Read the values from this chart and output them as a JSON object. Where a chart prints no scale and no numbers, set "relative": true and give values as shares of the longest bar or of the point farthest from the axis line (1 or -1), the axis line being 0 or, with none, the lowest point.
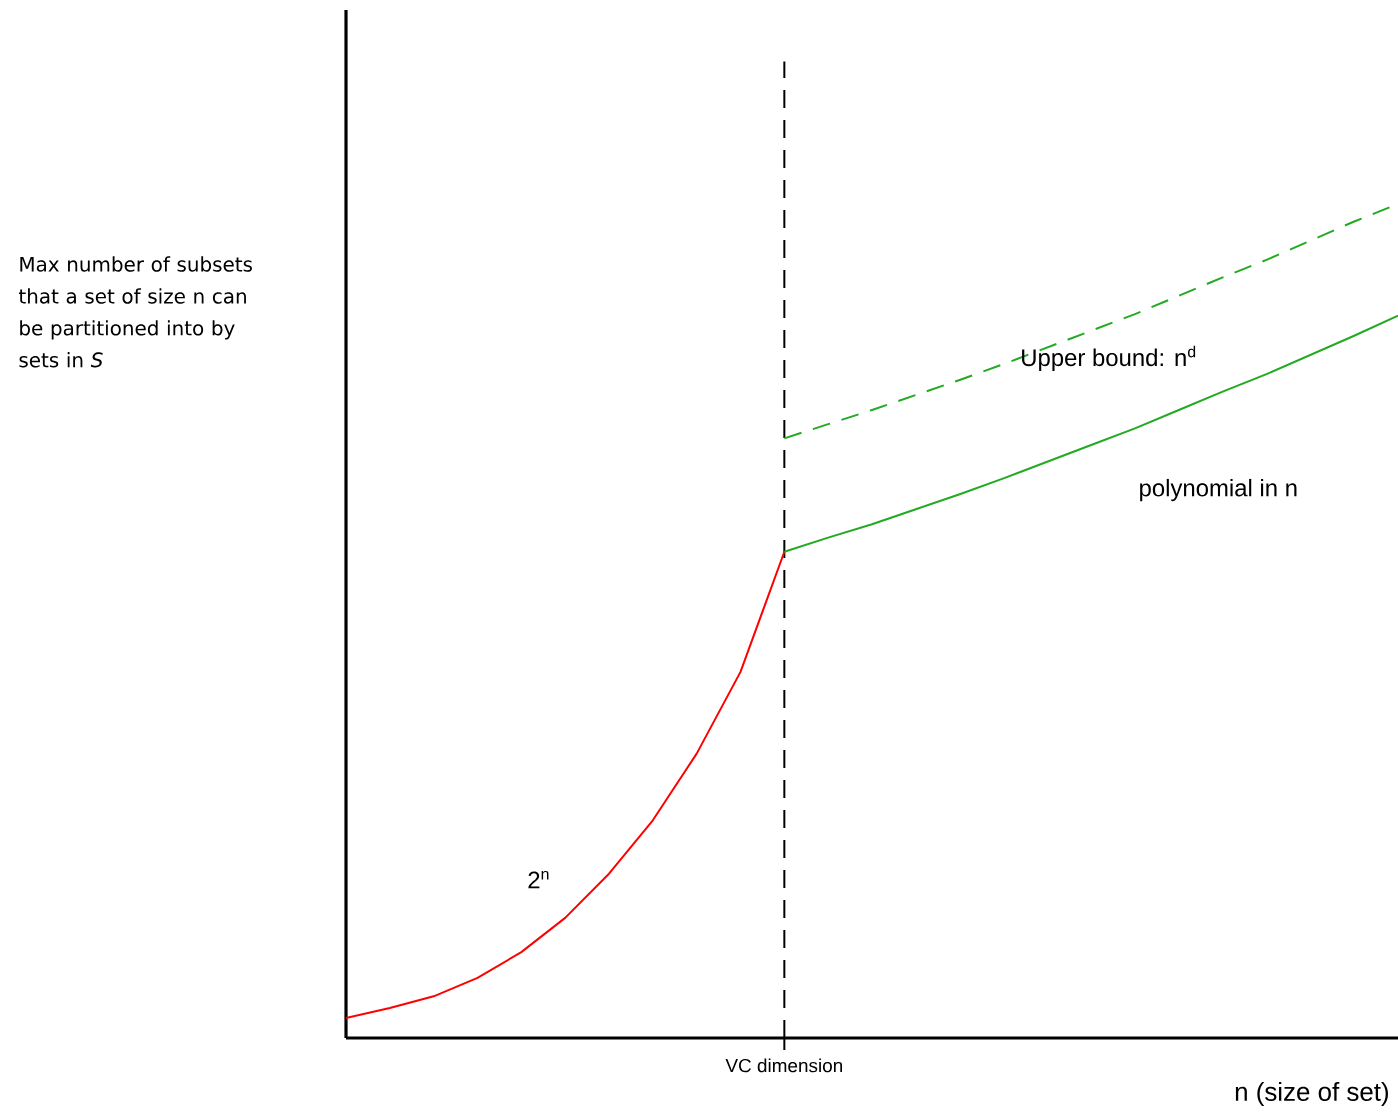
{
  "chart_data": {
    "type": "line",
    "relative": true,
    "ylabel": "Max number of subsets that a set of size n can be partitioned into by sets in *S*",
    "xlabel": "n (size of set)",
    "categories": [
      null,
      null,
      null,
      null,
      null,
      null,
      null,
      null,
      null,
      null,
      null,
      null,
      null,
      null,
      null,
      null,
      null,
      null,
      null,
      null,
      null,
      null,
      null,
      null,
      null
    ],
    "annotations": [
      "VC dimension"
    ],
    "series": [
      {
        "name": "2$^{n}$",
        "color": "#ff0000",
        "line_style": "solid",
        "values": [
          0.024,
          0.036,
          0.05,
          0.072,
          0.103,
          0.144,
          0.197,
          0.261,
          0.341,
          0.439,
          0.583,
          null,
          null,
          null,
          null,
          null,
          null,
          null,
          null,
          null,
          null,
          null,
          null,
          null,
          null
        ]
      },
      {
        "name": "polynomial in n",
        "color": "#22aa22",
        "line_style": "solid",
        "values": [
          null,
          null,
          null,
          null,
          null,
          null,
          null,
          null,
          null,
          null,
          0.583,
          0.6,
          0.616,
          0.634,
          0.652,
          0.671,
          0.691,
          0.711,
          0.731,
          0.753,
          0.775,
          0.796,
          0.819,
          0.842,
          0.866
        ]
      },
      {
        "name": "Upper bound:  n$^{d}$",
        "color": "#22aa22",
        "line_style": "dashed",
        "values": [
          null,
          null,
          null,
          null,
          null,
          null,
          null,
          null,
          null,
          null,
          0.719,
          0.736,
          0.753,
          0.771,
          0.789,
          0.808,
          0.828,
          0.848,
          0.868,
          0.89,
          0.912,
          0.933,
          0.956,
          0.979,
          1.0
        ]
      }
    ],
    "marker": "none"
  }
}
